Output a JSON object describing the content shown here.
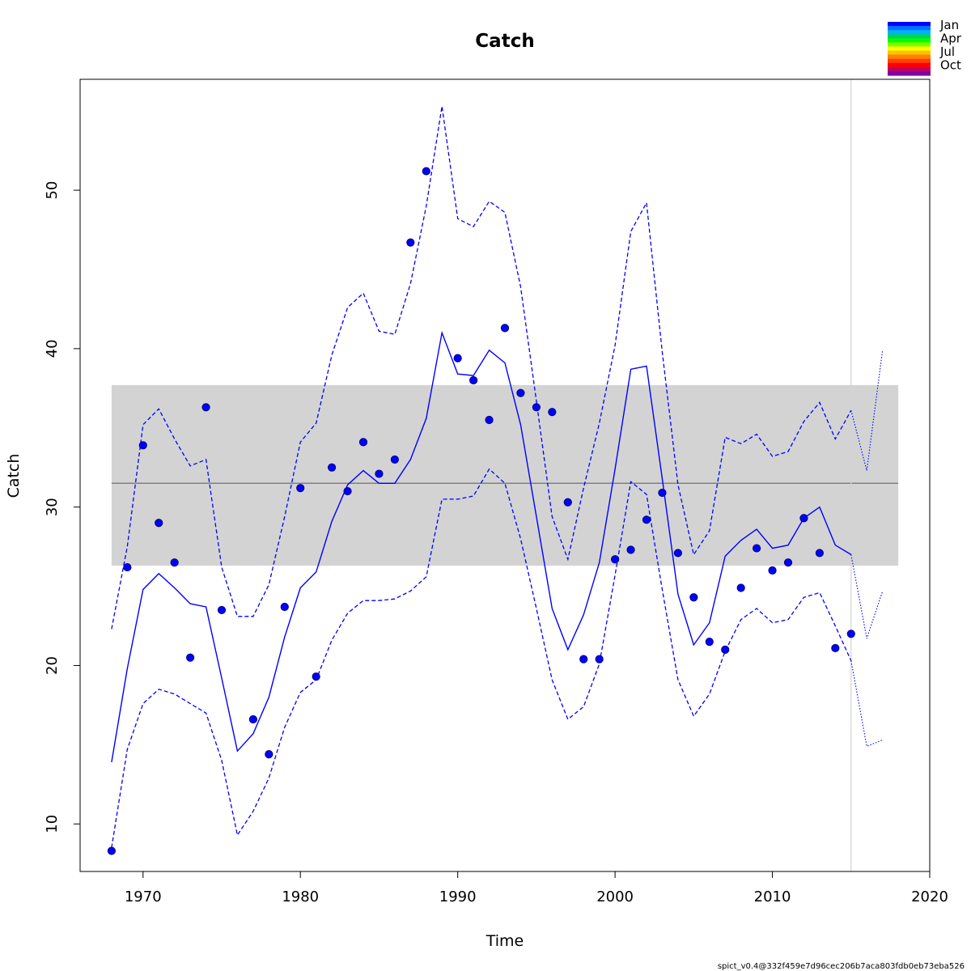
{
  "chart_data": {
    "type": "line",
    "title": "Catch",
    "xlabel": "Time",
    "ylabel": "Catch",
    "xlim": [
      1966,
      2020
    ],
    "ylim": [
      7,
      57
    ],
    "x_ticks": [
      1970,
      1980,
      1990,
      2000,
      2010,
      2020
    ],
    "y_ticks": [
      10,
      20,
      30,
      40,
      50
    ],
    "footer": "spict_v0.4@332f459e7d96cec206b7aca803fdb0eb73eba526",
    "colors": {
      "estimate": "#0000ff",
      "band": "#d3d3d3",
      "mean_line": "#808080",
      "vline": "#d3d3d3",
      "points_fill": "#0000ff",
      "points_stroke": "#000080"
    },
    "band": {
      "x_start": 1968,
      "x_end": 2018,
      "y_low": 26.3,
      "y_high": 37.7,
      "mean": 31.5
    },
    "vline_x": 2015,
    "legend": {
      "labels": [
        "Jan",
        "Apr",
        "Jul",
        "Oct"
      ],
      "gradient": [
        "#0000ff",
        "#0070ff",
        "#00b0ff",
        "#00d060",
        "#00ff00",
        "#80ff00",
        "#ffff00",
        "#ffc000",
        "#ff8000",
        "#ff4000",
        "#ff0000",
        "#c00060",
        "#8000a0"
      ]
    },
    "observed": {
      "x": [
        1968,
        1969,
        1970,
        1971,
        1972,
        1973,
        1974,
        1975,
        1977,
        1978,
        1979,
        1980,
        1981,
        1982,
        1983,
        1984,
        1985,
        1986,
        1987,
        1988,
        1990,
        1991,
        1992,
        1993,
        1994,
        1995,
        1996,
        1997,
        1998,
        1999,
        2000,
        2001,
        2002,
        2003,
        2004,
        2005,
        2006,
        2007,
        2008,
        2009,
        2010,
        2011,
        2012,
        2013,
        2014,
        2015
      ],
      "y": [
        8.3,
        26.2,
        33.9,
        29.0,
        26.5,
        20.5,
        36.3,
        23.5,
        16.6,
        14.4,
        23.7,
        31.2,
        19.3,
        32.5,
        31.0,
        34.1,
        32.1,
        33.0,
        46.7,
        51.2,
        39.4,
        38.0,
        35.5,
        41.3,
        37.2,
        36.3,
        36.0,
        30.3,
        20.4,
        20.4,
        26.7,
        27.3,
        29.2,
        30.9,
        27.1,
        24.3,
        21.5,
        21.0,
        24.9,
        27.4,
        26.0,
        26.5,
        29.3,
        27.1,
        21.1,
        22.0
      ]
    },
    "estimate": {
      "x": [
        1968,
        1969,
        1970,
        1971,
        1972,
        1973,
        1974,
        1975,
        1976,
        1977,
        1978,
        1979,
        1980,
        1981,
        1982,
        1983,
        1984,
        1985,
        1986,
        1987,
        1988,
        1989,
        1990,
        1991,
        1992,
        1993,
        1994,
        1995,
        1996,
        1997,
        1998,
        1999,
        2000,
        2001,
        2002,
        2003,
        2004,
        2005,
        2006,
        2007,
        2008,
        2009,
        2010,
        2011,
        2012,
        2013,
        2014,
        2015
      ],
      "y": [
        13.9,
        19.8,
        24.8,
        25.8,
        24.9,
        23.9,
        23.7,
        19.2,
        14.6,
        15.7,
        18.0,
        21.8,
        24.9,
        25.9,
        29.1,
        31.4,
        32.3,
        31.5,
        31.5,
        33.0,
        35.6,
        41.0,
        38.4,
        38.3,
        39.9,
        39.1,
        35.2,
        29.4,
        23.6,
        21.0,
        23.2,
        26.5,
        32.4,
        38.7,
        38.9,
        31.8,
        24.5,
        21.3,
        22.7,
        26.9,
        27.9,
        28.6,
        27.4,
        27.6,
        29.3,
        30.0,
        27.6,
        27.0
      ]
    },
    "upper_ci": {
      "x": [
        1968,
        1969,
        1970,
        1971,
        1972,
        1973,
        1974,
        1975,
        1976,
        1977,
        1978,
        1979,
        1980,
        1981,
        1982,
        1983,
        1984,
        1985,
        1986,
        1987,
        1988,
        1989,
        1990,
        1991,
        1992,
        1993,
        1994,
        1995,
        1996,
        1997,
        1998,
        1999,
        2000,
        2001,
        2002,
        2003,
        2004,
        2005,
        2006,
        2007,
        2008,
        2009,
        2010,
        2011,
        2012,
        2013,
        2014,
        2015
      ],
      "y": [
        22.3,
        27.5,
        35.2,
        36.2,
        34.3,
        32.6,
        33.0,
        26.2,
        23.1,
        23.1,
        25.1,
        29.4,
        34.1,
        35.3,
        39.6,
        42.6,
        43.5,
        41.1,
        40.9,
        44.1,
        49.0,
        55.3,
        48.2,
        47.7,
        49.3,
        48.6,
        43.9,
        36.7,
        29.4,
        26.7,
        31.2,
        35.3,
        40.2,
        47.4,
        49.2,
        39.8,
        31.4,
        27.0,
        28.5,
        34.4,
        34.0,
        34.6,
        33.2,
        33.5,
        35.4,
        36.6,
        34.3,
        36.1
      ]
    },
    "lower_ci": {
      "x": [
        1968,
        1969,
        1970,
        1971,
        1972,
        1973,
        1974,
        1975,
        1976,
        1977,
        1978,
        1979,
        1980,
        1981,
        1982,
        1983,
        1984,
        1985,
        1986,
        1987,
        1988,
        1989,
        1990,
        1991,
        1992,
        1993,
        1994,
        1995,
        1996,
        1997,
        1998,
        1999,
        2000,
        2001,
        2002,
        2003,
        2004,
        2005,
        2006,
        2007,
        2008,
        2009,
        2010,
        2011,
        2012,
        2013,
        2014,
        2015
      ],
      "y": [
        8.5,
        14.7,
        17.6,
        18.5,
        18.2,
        17.6,
        17.0,
        14.0,
        9.3,
        10.8,
        12.9,
        16.1,
        18.3,
        19.1,
        21.6,
        23.3,
        24.1,
        24.1,
        24.2,
        24.7,
        25.6,
        30.5,
        30.5,
        30.7,
        32.4,
        31.5,
        28.0,
        23.6,
        19.1,
        16.6,
        17.4,
        20.1,
        25.7,
        31.6,
        30.8,
        24.8,
        19.1,
        16.8,
        18.2,
        20.9,
        22.9,
        23.6,
        22.7,
        22.9,
        24.3,
        24.6,
        22.5,
        20.3
      ]
    },
    "forecast": {
      "x": [
        2015,
        2016,
        2017
      ],
      "estimate": [
        27.0,
        21.7,
        24.7
      ],
      "upper": [
        36.1,
        32.3,
        39.9
      ],
      "lower": [
        20.3,
        14.9,
        15.3
      ]
    }
  }
}
